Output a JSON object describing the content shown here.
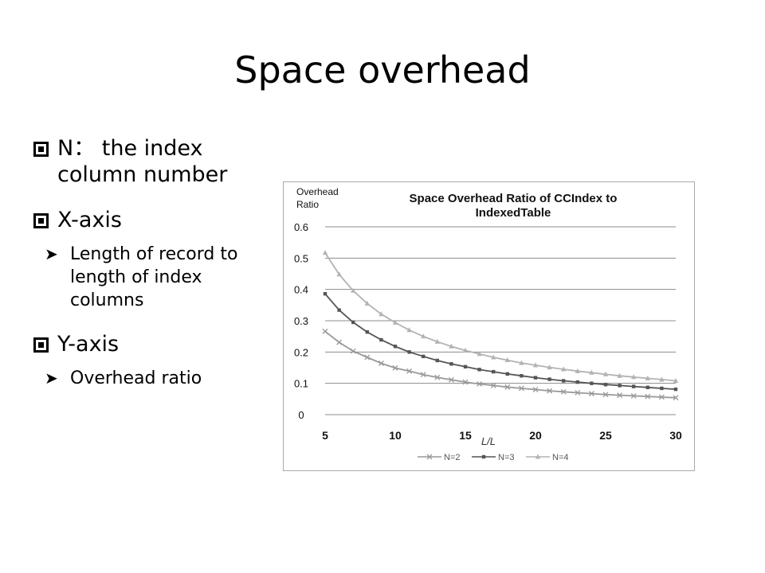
{
  "slide": {
    "title": "Space overhead",
    "bullets": [
      {
        "text": "N： the index column number"
      },
      {
        "text": "X-axis",
        "sub": "Length of record to length of index columns"
      },
      {
        "text": "Y-axis",
        "sub": "Overhead ratio"
      }
    ]
  },
  "chart_data": {
    "type": "line",
    "title_lines": [
      "Space Overhead Ratio of CCIndex to",
      "IndexedTable"
    ],
    "ylabel_lines": [
      "Overhead",
      "Ratio"
    ],
    "xlabel": "L/L",
    "xlim": [
      5,
      30
    ],
    "ylim": [
      0,
      0.6
    ],
    "xticks": [
      5,
      10,
      15,
      20,
      25,
      30
    ],
    "yticks": [
      0,
      0.1,
      0.2,
      0.3,
      0.4,
      0.5,
      0.6
    ],
    "ytick_labels": [
      "0",
      "0.1",
      "0.2",
      "0.3",
      "0.4",
      "0.5",
      "0.6"
    ],
    "grid": true,
    "legend_position": "bottom",
    "x": [
      5,
      6,
      7,
      8,
      9,
      10,
      11,
      12,
      13,
      14,
      15,
      16,
      17,
      18,
      19,
      20,
      21,
      22,
      23,
      24,
      25,
      26,
      27,
      28,
      29,
      30
    ],
    "series": [
      {
        "name": "N=2",
        "marker": "x",
        "color": "#999999",
        "values": [
          0.266,
          0.231,
          0.203,
          0.183,
          0.164,
          0.149,
          0.139,
          0.128,
          0.119,
          0.111,
          0.104,
          0.098,
          0.093,
          0.088,
          0.084,
          0.08,
          0.076,
          0.073,
          0.07,
          0.067,
          0.064,
          0.062,
          0.06,
          0.058,
          0.056,
          0.054
        ]
      },
      {
        "name": "N=3",
        "marker": "square",
        "color": "#555555",
        "values": [
          0.386,
          0.334,
          0.295,
          0.264,
          0.239,
          0.218,
          0.2,
          0.186,
          0.173,
          0.162,
          0.153,
          0.144,
          0.137,
          0.13,
          0.124,
          0.118,
          0.113,
          0.108,
          0.104,
          0.1,
          0.096,
          0.093,
          0.09,
          0.087,
          0.084,
          0.081
        ]
      },
      {
        "name": "N=4",
        "marker": "triangle",
        "color": "#b3b3b3",
        "values": [
          0.517,
          0.448,
          0.396,
          0.355,
          0.321,
          0.294,
          0.27,
          0.25,
          0.233,
          0.218,
          0.205,
          0.194,
          0.183,
          0.174,
          0.165,
          0.158,
          0.151,
          0.145,
          0.139,
          0.134,
          0.129,
          0.124,
          0.12,
          0.116,
          0.112,
          0.108
        ]
      }
    ]
  }
}
